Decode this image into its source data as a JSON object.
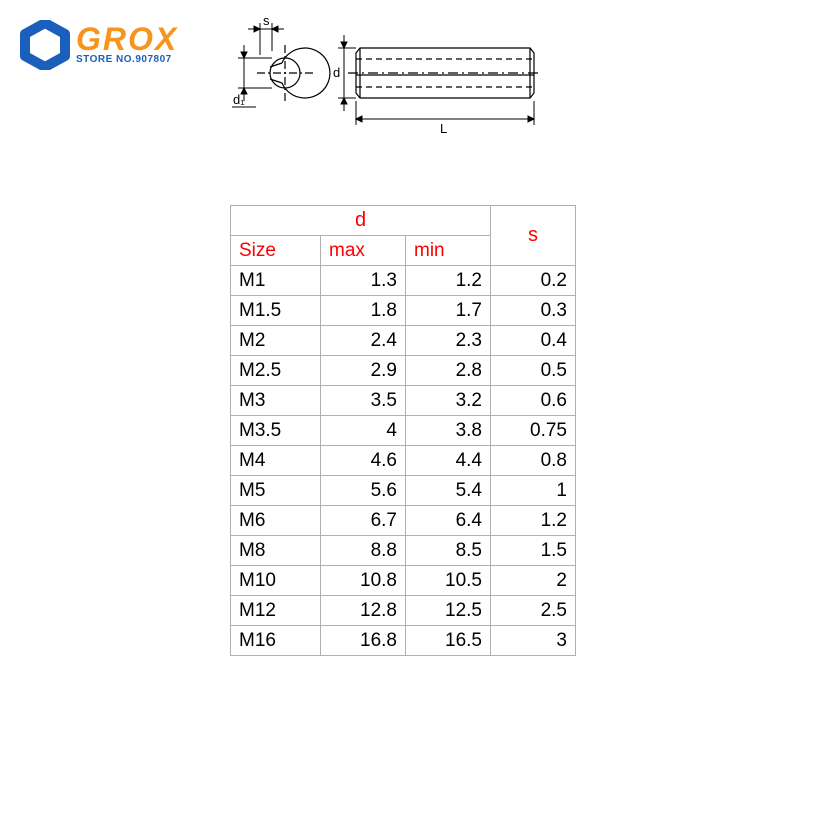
{
  "logo": {
    "brand": "GROX",
    "store_line": "STORE NO.907807",
    "hex_stroke": "#1b5fbd",
    "brand_color": "#f7941d",
    "store_color": "#1b5fbd"
  },
  "diagram": {
    "labels": {
      "s": "s",
      "d1": "d₁",
      "d": "d",
      "L": "L"
    },
    "stroke": "#000000",
    "stroke_width": 1.2
  },
  "table": {
    "header_color": "#ff0000",
    "border_color": "#b0b0b0",
    "text_color": "#000000",
    "cell_fontsize": 19,
    "headers": {
      "d": "d",
      "s": "s",
      "size": "Size",
      "max": "max",
      "min": "min"
    },
    "col_widths": {
      "size": 90,
      "max": 85,
      "min": 85,
      "s": 85
    },
    "rows": [
      {
        "size": "M1",
        "max": "1.3",
        "min": "1.2",
        "s": "0.2"
      },
      {
        "size": "M1.5",
        "max": "1.8",
        "min": "1.7",
        "s": "0.3"
      },
      {
        "size": "M2",
        "max": "2.4",
        "min": "2.3",
        "s": "0.4"
      },
      {
        "size": "M2.5",
        "max": "2.9",
        "min": "2.8",
        "s": "0.5"
      },
      {
        "size": "M3",
        "max": "3.5",
        "min": "3.2",
        "s": "0.6"
      },
      {
        "size": "M3.5",
        "max": "4",
        "min": "3.8",
        "s": "0.75"
      },
      {
        "size": "M4",
        "max": "4.6",
        "min": "4.4",
        "s": "0.8"
      },
      {
        "size": "M5",
        "max": "5.6",
        "min": "5.4",
        "s": "1"
      },
      {
        "size": "M6",
        "max": "6.7",
        "min": "6.4",
        "s": "1.2"
      },
      {
        "size": "M8",
        "max": "8.8",
        "min": "8.5",
        "s": "1.5"
      },
      {
        "size": "M10",
        "max": "10.8",
        "min": "10.5",
        "s": "2"
      },
      {
        "size": "M12",
        "max": "12.8",
        "min": "12.5",
        "s": "2.5"
      },
      {
        "size": "M16",
        "max": "16.8",
        "min": "16.5",
        "s": "3"
      }
    ]
  }
}
